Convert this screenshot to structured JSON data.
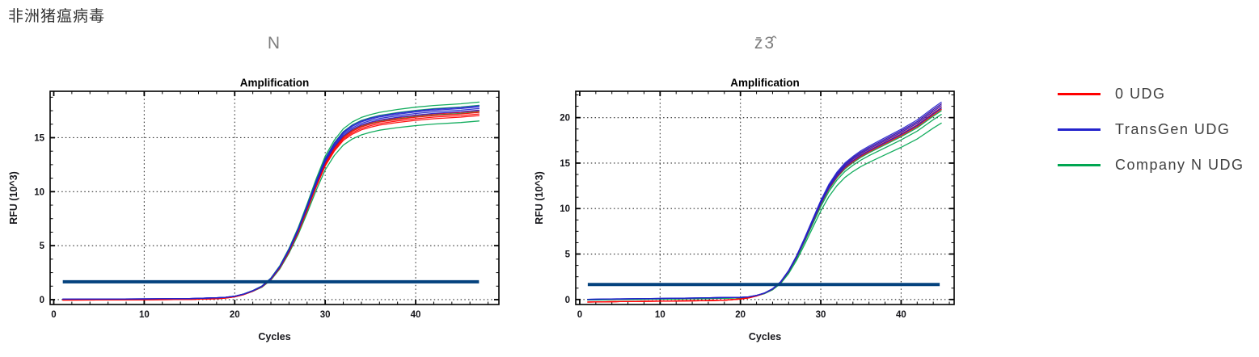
{
  "page": {
    "heading": "非洲猪瘟病毒",
    "background": "#ffffff"
  },
  "legend": {
    "items": [
      {
        "label": "0 UDG",
        "color": "#ff0000"
      },
      {
        "label": "TransGen UDG",
        "color": "#2424cc"
      },
      {
        "label": "Company N UDG",
        "color": "#00a651"
      }
    ]
  },
  "chart_data": [
    {
      "type": "line",
      "panel_label": "N",
      "title": "Amplification",
      "xlabel": "Cycles",
      "ylabel": "RFU (10^3)",
      "x_ticks": [
        0,
        10,
        20,
        30,
        40
      ],
      "y_ticks": [
        0,
        5,
        10,
        15
      ],
      "xlim": [
        -0.4,
        49.2
      ],
      "ylim": [
        -0.45,
        19.3
      ],
      "x_minor_step": 2,
      "y_minor_step": 1.25,
      "grid": "dotted",
      "legend_position": "outside-right",
      "threshold": {
        "value": 1.65,
        "x_start": 1,
        "x_end": 47,
        "color": "#04427e"
      },
      "shape_cycles": [
        1,
        5,
        10,
        15,
        18,
        19,
        20,
        21,
        22,
        23,
        24,
        25,
        26,
        27,
        28,
        29,
        30,
        31,
        32,
        33,
        34,
        35,
        36,
        38,
        40,
        42,
        45,
        47
      ],
      "shape_values": [
        0.02,
        0.03,
        0.05,
        0.08,
        0.15,
        0.2,
        0.3,
        0.5,
        0.8,
        1.2,
        1.9,
        3.0,
        4.5,
        6.3,
        8.4,
        10.6,
        12.6,
        14.0,
        15.0,
        15.6,
        16.0,
        16.25,
        16.45,
        16.7,
        16.9,
        17.05,
        17.2,
        17.35
      ],
      "series": [
        {
          "name": "Company N UDG",
          "color": "#00a651",
          "baseline_offset": 0.0,
          "plateaus_end": [
            16.55,
            17.4,
            18.0,
            18.3
          ]
        },
        {
          "name": "0 UDG",
          "color": "#ff0000",
          "baseline_offset": -0.06,
          "plateaus_end": [
            17.05,
            17.2,
            17.35,
            17.5
          ]
        },
        {
          "name": "TransGen UDG",
          "color": "#2424cc",
          "baseline_offset": 0.02,
          "plateaus_end": [
            17.55,
            17.7,
            17.85,
            17.95
          ]
        }
      ]
    },
    {
      "type": "line",
      "panel_label": "z̄3̂",
      "title": "Amplification",
      "xlabel": "Cycles",
      "ylabel": "RFU (10^3)",
      "x_ticks": [
        0,
        10,
        20,
        30,
        40
      ],
      "y_ticks": [
        0,
        5,
        10,
        15,
        20
      ],
      "xlim": [
        -0.5,
        46.6
      ],
      "ylim": [
        -0.55,
        22.9
      ],
      "x_minor_step": 2,
      "y_minor_step": 1.25,
      "grid": "dotted",
      "legend_position": "outside-right",
      "threshold": {
        "value": 1.65,
        "x_start": 1,
        "x_end": 44.8,
        "color": "#04427e"
      },
      "shape_cycles": [
        1,
        5,
        10,
        15,
        18,
        20,
        21,
        22,
        23,
        24,
        25,
        26,
        27,
        28,
        29,
        30,
        31,
        32,
        33,
        34,
        35,
        36,
        38,
        40,
        42,
        44,
        45
      ],
      "shape_values": [
        -0.2,
        -0.15,
        -0.1,
        -0.05,
        0.0,
        0.1,
        0.2,
        0.4,
        0.7,
        1.15,
        1.9,
        3.1,
        4.7,
        6.6,
        8.6,
        10.6,
        12.3,
        13.6,
        14.6,
        15.3,
        15.9,
        16.4,
        17.3,
        18.2,
        19.2,
        20.5,
        21.1
      ],
      "series": [
        {
          "name": "Company N UDG",
          "color": "#00a651",
          "baseline_offset": 0.15,
          "plateaus_end": [
            19.4,
            20.35,
            20.75,
            21.05
          ]
        },
        {
          "name": "0 UDG",
          "color": "#ff0000",
          "baseline_offset": -0.08,
          "plateaus_end": [
            20.9,
            21.1,
            21.3,
            21.5
          ]
        },
        {
          "name": "TransGen UDG",
          "color": "#2424cc",
          "baseline_offset": 0.22,
          "plateaus_end": [
            21.05,
            21.3,
            21.5,
            21.7
          ]
        }
      ]
    }
  ]
}
